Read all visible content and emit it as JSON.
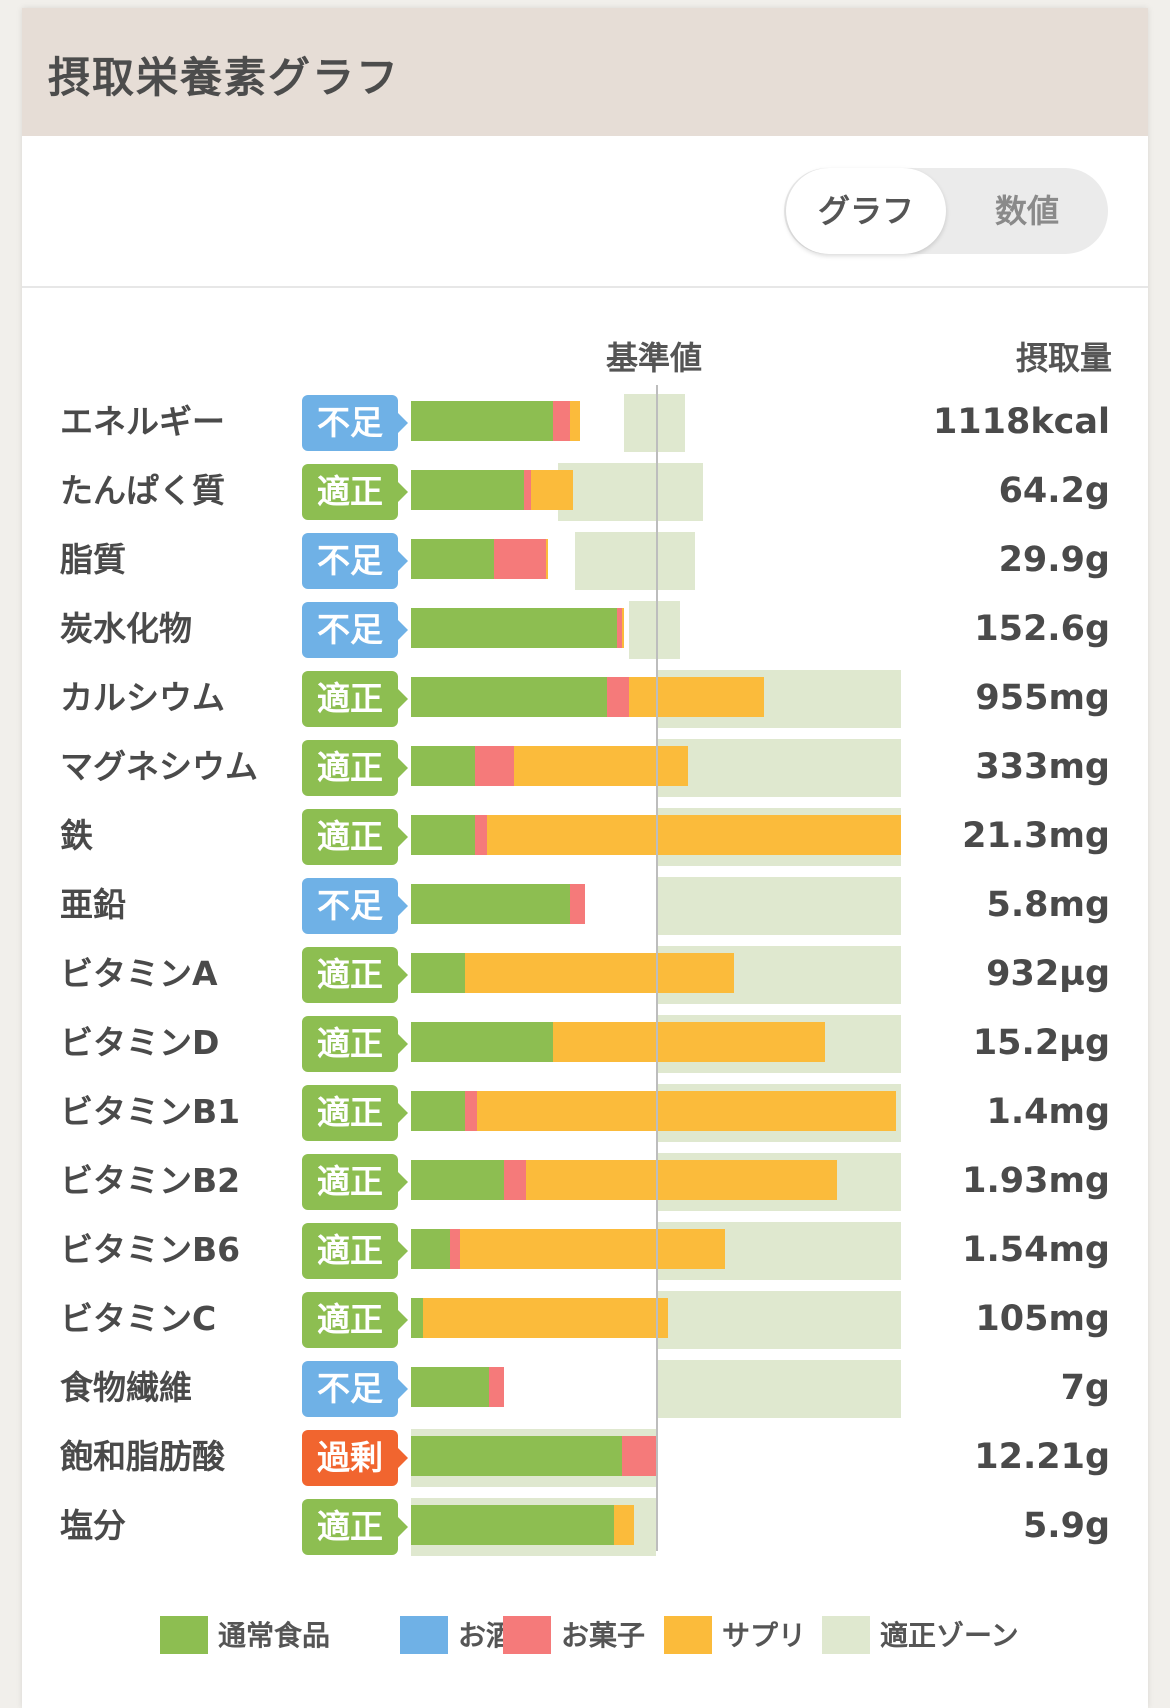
{
  "header": {
    "title": "摂取栄養素グラフ"
  },
  "view_toggle": {
    "graph_label": "グラフ",
    "number_label": "数値",
    "selected": "グラフ"
  },
  "columns": {
    "reference": "基準値",
    "intake": "摂取量"
  },
  "colors": {
    "normal_food": "#8dbe51",
    "alcohol": "#6fb1e6",
    "snacks": "#f57a7a",
    "supplement": "#fbbb3b",
    "optimal_zone": "#dfe8cf",
    "status_short": "#6fb1e6",
    "status_ok": "#8dbe51",
    "status_over": "#f1652f"
  },
  "status_labels": {
    "short": "不足",
    "ok": "適正",
    "over": "過剰"
  },
  "chart_data": {
    "type": "bar",
    "stacked": true,
    "title": "摂取栄養素グラフ",
    "reference_label": "基準値",
    "value_label": "摂取量",
    "units": "percent of reference value (reference = 100)",
    "series_names": [
      "通常食品",
      "お酒",
      "お菓子",
      "サプリ"
    ],
    "nutrients": [
      {
        "name": "エネルギー",
        "status": "不足",
        "status_key": "short",
        "amount": "1118kcal",
        "food": 58,
        "alcohol": 0,
        "snack": 7,
        "supplement": 4,
        "zone": [
          87,
          112
        ]
      },
      {
        "name": "たんぱく質",
        "status": "適正",
        "status_key": "ok",
        "amount": "64.2g",
        "food": 46,
        "alcohol": 0,
        "snack": 3,
        "supplement": 17,
        "zone": [
          60,
          119
        ]
      },
      {
        "name": "脂質",
        "status": "不足",
        "status_key": "short",
        "amount": "29.9g",
        "food": 34,
        "alcohol": 0,
        "snack": 21,
        "supplement": 1,
        "zone": [
          67,
          116
        ]
      },
      {
        "name": "炭水化物",
        "status": "不足",
        "status_key": "short",
        "amount": "152.6g",
        "food": 84,
        "alcohol": 0,
        "snack": 2,
        "supplement": 1,
        "zone": [
          89,
          110
        ]
      },
      {
        "name": "カルシウム",
        "status": "適正",
        "status_key": "ok",
        "amount": "955mg",
        "food": 80,
        "alcohol": 0,
        "snack": 9,
        "supplement": 55,
        "zone": [
          100,
          200
        ]
      },
      {
        "name": "マグネシウム",
        "status": "適正",
        "status_key": "ok",
        "amount": "333mg",
        "food": 26,
        "alcohol": 0,
        "snack": 16,
        "supplement": 71,
        "zone": [
          100,
          200
        ]
      },
      {
        "name": "鉄",
        "status": "適正",
        "status_key": "ok",
        "amount": "21.3mg",
        "food": 26,
        "alcohol": 0,
        "snack": 5,
        "supplement": 169,
        "zone": [
          100,
          200
        ]
      },
      {
        "name": "亜鉛",
        "status": "不足",
        "status_key": "short",
        "amount": "5.8mg",
        "food": 65,
        "alcohol": 0,
        "snack": 6,
        "supplement": 0,
        "zone": [
          100,
          200
        ]
      },
      {
        "name": "ビタミンA",
        "status": "適正",
        "status_key": "ok",
        "amount": "932µg",
        "food": 22,
        "alcohol": 0,
        "snack": 0,
        "supplement": 110,
        "zone": [
          100,
          200
        ]
      },
      {
        "name": "ビタミンD",
        "status": "適正",
        "status_key": "ok",
        "amount": "15.2µg",
        "food": 58,
        "alcohol": 0,
        "snack": 0,
        "supplement": 111,
        "zone": [
          100,
          200
        ]
      },
      {
        "name": "ビタミンB1",
        "status": "適正",
        "status_key": "ok",
        "amount": "1.4mg",
        "food": 22,
        "alcohol": 0,
        "snack": 5,
        "supplement": 171,
        "zone": [
          100,
          200
        ]
      },
      {
        "name": "ビタミンB2",
        "status": "適正",
        "status_key": "ok",
        "amount": "1.93mg",
        "food": 38,
        "alcohol": 0,
        "snack": 9,
        "supplement": 127,
        "zone": [
          100,
          200
        ]
      },
      {
        "name": "ビタミンB6",
        "status": "適正",
        "status_key": "ok",
        "amount": "1.54mg",
        "food": 16,
        "alcohol": 0,
        "snack": 4,
        "supplement": 108,
        "zone": [
          100,
          200
        ]
      },
      {
        "name": "ビタミンC",
        "status": "適正",
        "status_key": "ok",
        "amount": "105mg",
        "food": 5,
        "alcohol": 0,
        "snack": 0,
        "supplement": 100,
        "zone": [
          100,
          200
        ]
      },
      {
        "name": "食物繊維",
        "status": "不足",
        "status_key": "short",
        "amount": "7g",
        "food": 32,
        "alcohol": 0,
        "snack": 6,
        "supplement": 0,
        "zone": [
          100,
          200
        ]
      },
      {
        "name": "飽和脂肪酸",
        "status": "過剰",
        "status_key": "over",
        "amount": "12.21g",
        "food": 86,
        "alcohol": 0,
        "snack": 15,
        "supplement": 0,
        "zone": [
          0,
          100
        ]
      },
      {
        "name": "塩分",
        "status": "適正",
        "status_key": "ok",
        "amount": "5.9g",
        "food": 83,
        "alcohol": 0,
        "snack": 0,
        "supplement": 8,
        "zone": [
          0,
          100
        ]
      }
    ]
  },
  "legend": [
    {
      "label": "通常食品",
      "color": "#8dbe51"
    },
    {
      "label": "お酒",
      "color": "#6fb1e6"
    },
    {
      "label": "お菓子",
      "color": "#f57a7a"
    },
    {
      "label": "サプリ",
      "color": "#fbbb3b"
    },
    {
      "label": "適正ゾーン",
      "color": "#dfe8cf"
    }
  ]
}
